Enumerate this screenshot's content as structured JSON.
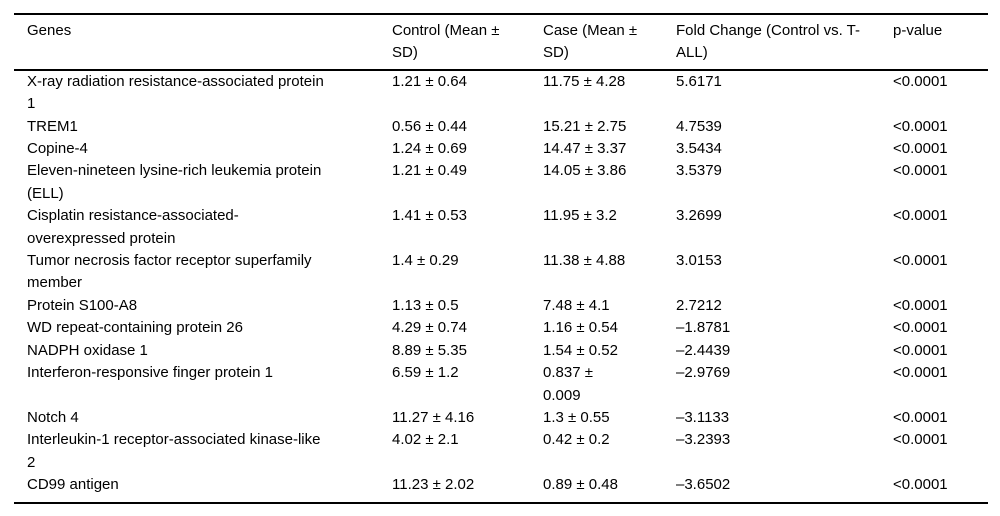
{
  "colors": {
    "background": "#ffffff",
    "text": "#000000",
    "rule": "#000000"
  },
  "table": {
    "columns": [
      {
        "id": "gene",
        "label": "Genes"
      },
      {
        "id": "control",
        "label": "Control (Mean ±\nSD)"
      },
      {
        "id": "case",
        "label": "Case (Mean ±\nSD)"
      },
      {
        "id": "fold_change",
        "label": "Fold Change (Control vs. T-\nALL)"
      },
      {
        "id": "p_value",
        "label": "p-value"
      }
    ],
    "rows": [
      {
        "gene": "X-ray radiation resistance-associated protein\n1",
        "control": "1.21 ± 0.64",
        "case": "11.75 ± 4.28",
        "fold_change": "5.6171",
        "p_value": "<0.0001"
      },
      {
        "gene": "TREM1",
        "control": "0.56 ± 0.44",
        "case": "15.21 ± 2.75",
        "fold_change": "4.7539",
        "p_value": "<0.0001"
      },
      {
        "gene": "Copine-4",
        "control": "1.24 ± 0.69",
        "case": "14.47 ± 3.37",
        "fold_change": "3.5434",
        "p_value": "<0.0001"
      },
      {
        "gene": "Eleven-nineteen lysine-rich leukemia protein\n(ELL)",
        "control": "1.21 ± 0.49",
        "case": "14.05 ± 3.86",
        "fold_change": "3.5379",
        "p_value": "<0.0001"
      },
      {
        "gene": "Cisplatin resistance-associated-\noverexpressed protein",
        "control": "1.41 ± 0.53",
        "case": "11.95 ± 3.2",
        "fold_change": "3.2699",
        "p_value": "<0.0001"
      },
      {
        "gene": "Tumor necrosis factor receptor superfamily\nmember",
        "control": "1.4 ± 0.29",
        "case": "11.38 ± 4.88",
        "fold_change": "3.0153",
        "p_value": "<0.0001"
      },
      {
        "gene": "Protein S100-A8",
        "control": "1.13 ± 0.5",
        "case": "7.48 ± 4.1",
        "fold_change": "2.7212",
        "p_value": "<0.0001"
      },
      {
        "gene": "WD repeat-containing protein 26",
        "control": "4.29 ± 0.74",
        "case": "1.16 ± 0.54",
        "fold_change": "–1.8781",
        "p_value": "<0.0001"
      },
      {
        "gene": "NADPH oxidase 1",
        "control": "8.89 ± 5.35",
        "case": "1.54 ± 0.52",
        "fold_change": "–2.4439",
        "p_value": "<0.0001"
      },
      {
        "gene": "Interferon-responsive finger protein 1",
        "control": "6.59 ± 1.2",
        "case": "0.837 ±\n0.009",
        "fold_change": "–2.9769",
        "p_value": "<0.0001"
      },
      {
        "gene": "Notch 4",
        "control": "11.27 ± 4.16",
        "case": "1.3 ± 0.55",
        "fold_change": "–3.1133",
        "p_value": "<0.0001"
      },
      {
        "gene": "Interleukin-1 receptor-associated kinase-like\n2",
        "control": "4.02 ± 2.1",
        "case": "0.42 ± 0.2",
        "fold_change": "–3.2393",
        "p_value": "<0.0001"
      },
      {
        "gene": "CD99 antigen",
        "control": "11.23 ± 2.02",
        "case": "0.89 ± 0.48",
        "fold_change": "–3.6502",
        "p_value": "<0.0001"
      }
    ]
  }
}
